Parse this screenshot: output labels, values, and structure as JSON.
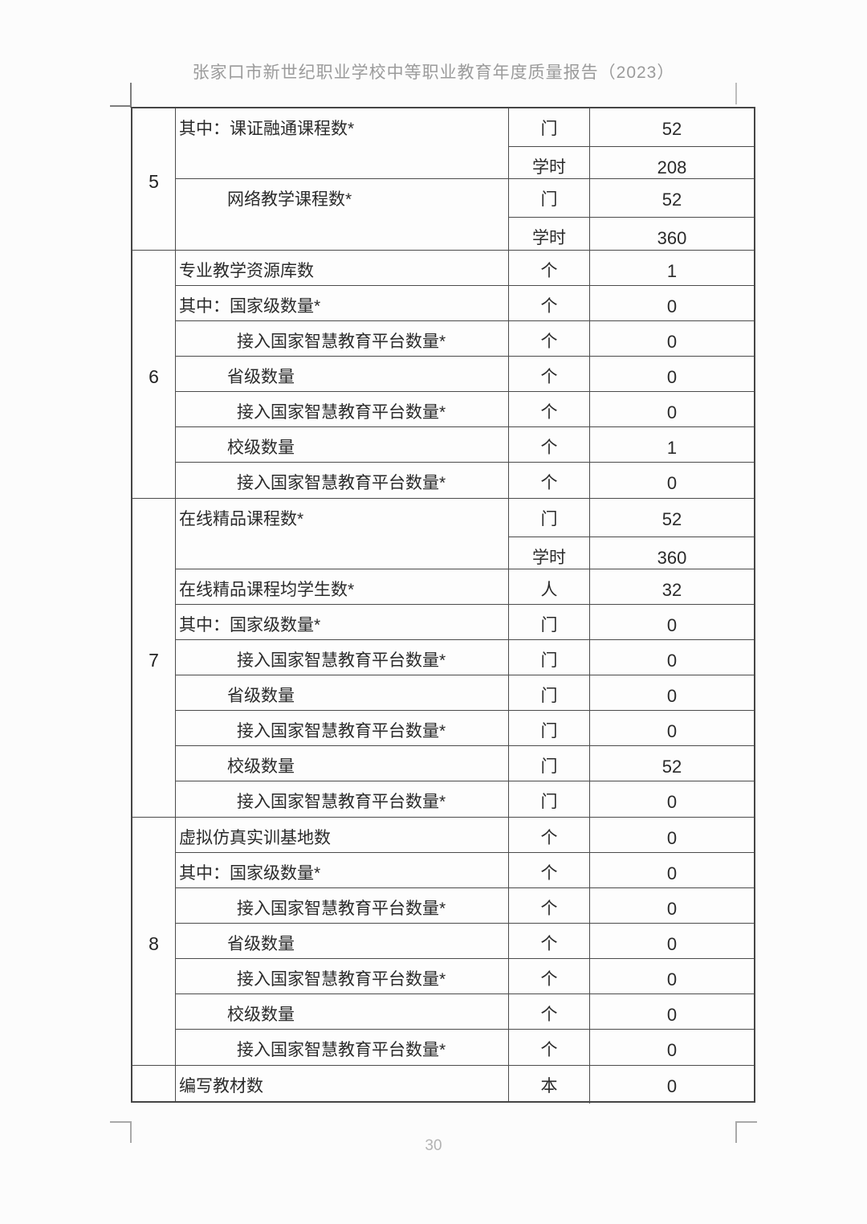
{
  "page": {
    "header_title": "张家口市新世纪职业学校中等职业教育年度质量报告（2023）",
    "page_number": "30"
  },
  "table": {
    "sections": [
      {
        "number": "5",
        "rows": [
          {
            "name": "其中：课证融通课程数*",
            "indent": 0,
            "units": [
              {
                "unit": "门",
                "value": "52"
              },
              {
                "unit": "学时",
                "value": "208"
              }
            ]
          },
          {
            "name": "网络教学课程数*",
            "indent": 1,
            "units": [
              {
                "unit": "门",
                "value": "52"
              },
              {
                "unit": "学时",
                "value": "360"
              }
            ]
          }
        ]
      },
      {
        "number": "6",
        "rows": [
          {
            "name": "专业教学资源库数",
            "indent": 0,
            "units": [
              {
                "unit": "个",
                "value": "1"
              }
            ]
          },
          {
            "name": "其中：国家级数量*",
            "indent": 0,
            "units": [
              {
                "unit": "个",
                "value": "0"
              }
            ]
          },
          {
            "name": "接入国家智慧教育平台数量*",
            "indent": 2,
            "units": [
              {
                "unit": "个",
                "value": "0"
              }
            ]
          },
          {
            "name": "省级数量",
            "indent": 1,
            "units": [
              {
                "unit": "个",
                "value": "0"
              }
            ]
          },
          {
            "name": "接入国家智慧教育平台数量*",
            "indent": 2,
            "units": [
              {
                "unit": "个",
                "value": "0"
              }
            ]
          },
          {
            "name": "校级数量",
            "indent": 1,
            "units": [
              {
                "unit": "个",
                "value": "1"
              }
            ]
          },
          {
            "name": "接入国家智慧教育平台数量*",
            "indent": 2,
            "units": [
              {
                "unit": "个",
                "value": "0"
              }
            ]
          }
        ]
      },
      {
        "number": "7",
        "rows": [
          {
            "name": "在线精品课程数*",
            "indent": 0,
            "units": [
              {
                "unit": "门",
                "value": "52"
              },
              {
                "unit": "学时",
                "value": "360"
              }
            ]
          },
          {
            "name": "在线精品课程均学生数*",
            "indent": 0,
            "units": [
              {
                "unit": "人",
                "value": "32"
              }
            ]
          },
          {
            "name": "其中：国家级数量*",
            "indent": 0,
            "units": [
              {
                "unit": "门",
                "value": "0"
              }
            ]
          },
          {
            "name": "接入国家智慧教育平台数量*",
            "indent": 2,
            "units": [
              {
                "unit": "门",
                "value": "0"
              }
            ]
          },
          {
            "name": "省级数量",
            "indent": 1,
            "units": [
              {
                "unit": "门",
                "value": "0"
              }
            ]
          },
          {
            "name": "接入国家智慧教育平台数量*",
            "indent": 2,
            "units": [
              {
                "unit": "门",
                "value": "0"
              }
            ]
          },
          {
            "name": "校级数量",
            "indent": 1,
            "units": [
              {
                "unit": "门",
                "value": "52"
              }
            ]
          },
          {
            "name": "接入国家智慧教育平台数量*",
            "indent": 2,
            "units": [
              {
                "unit": "门",
                "value": "0"
              }
            ]
          }
        ]
      },
      {
        "number": "8",
        "rows": [
          {
            "name": "虚拟仿真实训基地数",
            "indent": 0,
            "units": [
              {
                "unit": "个",
                "value": "0"
              }
            ]
          },
          {
            "name": "其中：国家级数量*",
            "indent": 0,
            "units": [
              {
                "unit": "个",
                "value": "0"
              }
            ]
          },
          {
            "name": "接入国家智慧教育平台数量*",
            "indent": 2,
            "units": [
              {
                "unit": "个",
                "value": "0"
              }
            ]
          },
          {
            "name": "省级数量",
            "indent": 1,
            "units": [
              {
                "unit": "个",
                "value": "0"
              }
            ]
          },
          {
            "name": "接入国家智慧教育平台数量*",
            "indent": 2,
            "units": [
              {
                "unit": "个",
                "value": "0"
              }
            ]
          },
          {
            "name": "校级数量",
            "indent": 1,
            "units": [
              {
                "unit": "个",
                "value": "0"
              }
            ]
          },
          {
            "name": "接入国家智慧教育平台数量*",
            "indent": 2,
            "units": [
              {
                "unit": "个",
                "value": "0"
              }
            ]
          }
        ]
      },
      {
        "number": "",
        "rows": [
          {
            "name": "编写教材数",
            "indent": 0,
            "units": [
              {
                "unit": "本",
                "value": "0"
              }
            ]
          }
        ]
      }
    ]
  }
}
